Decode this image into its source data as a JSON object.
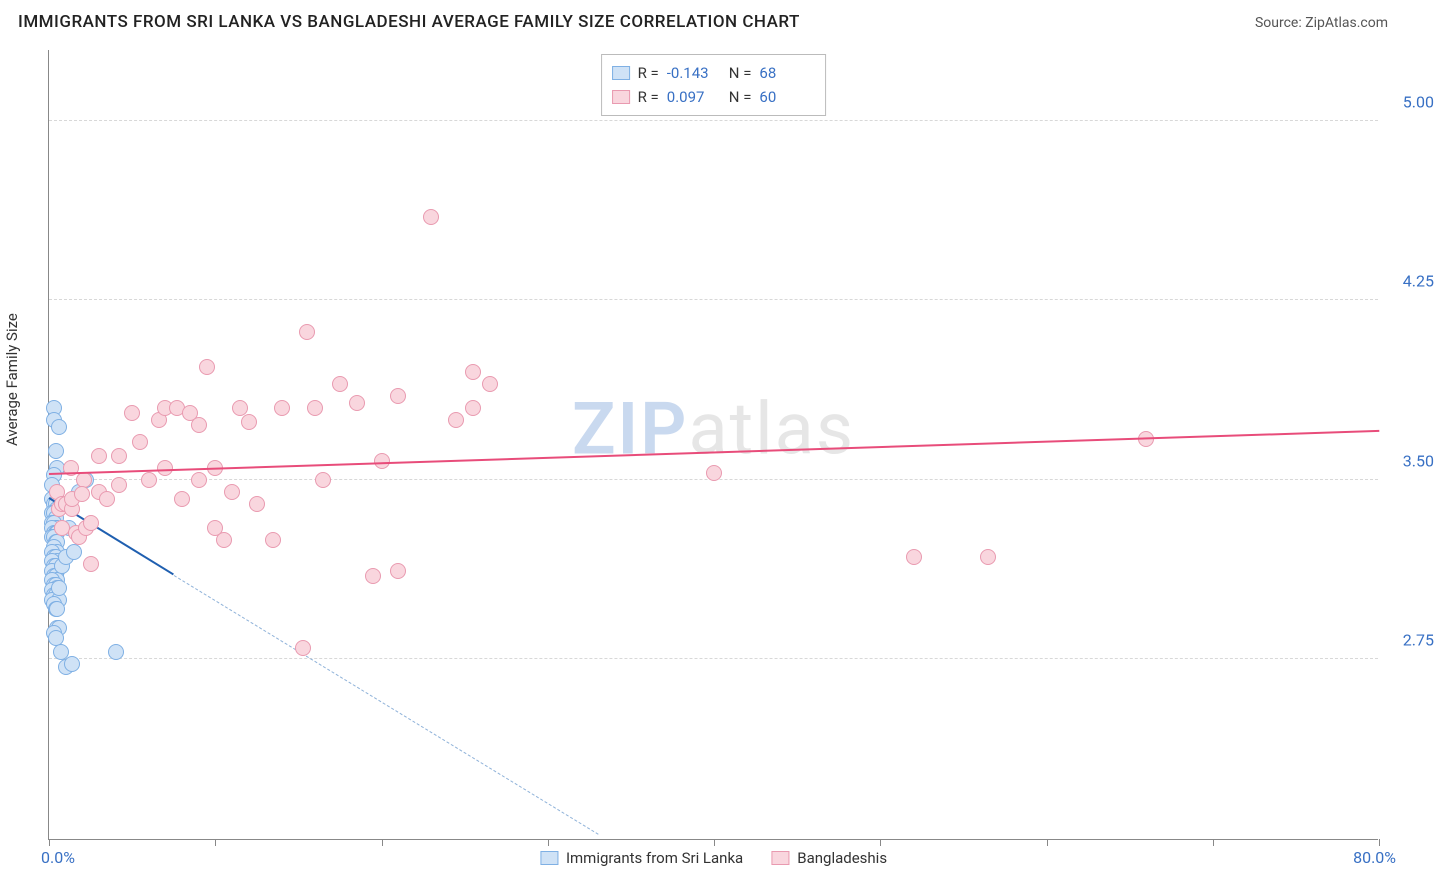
{
  "header": {
    "title": "IMMIGRANTS FROM SRI LANKA VS BANGLADESHI AVERAGE FAMILY SIZE CORRELATION CHART",
    "source_prefix": "Source: ",
    "source_name": "ZipAtlas.com"
  },
  "watermark": {
    "zip": "ZIP",
    "atlas": "atlas"
  },
  "chart": {
    "type": "scatter",
    "ylabel": "Average Family Size",
    "xlim": [
      0,
      80
    ],
    "ylim": [
      2.0,
      5.3
    ],
    "x_axis_min_label": "0.0%",
    "x_axis_max_label": "80.0%",
    "y_ticks": [
      2.75,
      3.5,
      4.25,
      5.0
    ],
    "y_tick_labels": [
      "2.75",
      "3.50",
      "4.25",
      "5.00"
    ],
    "x_tick_positions": [
      0,
      10,
      20,
      30,
      40,
      50,
      60,
      70,
      80
    ],
    "grid_color": "#d8d8d8",
    "background_color": "#ffffff",
    "axis_color": "#888888",
    "tick_label_color": "#3870c4",
    "marker_radius": 8,
    "series": [
      {
        "key": "sri_lanka",
        "label": "Immigrants from Sri Lanka",
        "fill": "#cfe2f6",
        "stroke": "#7fb0e4",
        "solid_line_color": "#1f5fb0",
        "dashed_line_color": "#8fb2d9",
        "R": "-0.143",
        "N": "68",
        "trend": {
          "x1": 0,
          "y1": 3.42,
          "x2": 7.5,
          "y2": 3.1,
          "width": 2.5
        },
        "trend_dashed": {
          "x1": 7.5,
          "y1": 3.1,
          "x2": 33,
          "y2": 2.02,
          "width": 1.5
        },
        "points": [
          [
            0.3,
            3.8
          ],
          [
            0.3,
            3.75
          ],
          [
            0.6,
            3.72
          ],
          [
            0.4,
            3.62
          ],
          [
            0.5,
            3.55
          ],
          [
            0.3,
            3.52
          ],
          [
            0.2,
            3.48
          ],
          [
            0.2,
            3.42
          ],
          [
            0.3,
            3.4
          ],
          [
            0.4,
            3.4
          ],
          [
            0.5,
            3.38
          ],
          [
            0.2,
            3.36
          ],
          [
            0.3,
            3.36
          ],
          [
            0.4,
            3.34
          ],
          [
            0.2,
            3.32
          ],
          [
            0.3,
            3.32
          ],
          [
            0.4,
            3.3
          ],
          [
            0.5,
            3.3
          ],
          [
            0.2,
            3.3
          ],
          [
            0.3,
            3.28
          ],
          [
            0.4,
            3.28
          ],
          [
            0.5,
            3.28
          ],
          [
            0.2,
            3.26
          ],
          [
            0.3,
            3.26
          ],
          [
            0.4,
            3.24
          ],
          [
            0.5,
            3.24
          ],
          [
            0.3,
            3.22
          ],
          [
            0.5,
            3.2
          ],
          [
            0.2,
            3.2
          ],
          [
            0.3,
            3.18
          ],
          [
            0.4,
            3.18
          ],
          [
            0.5,
            3.16
          ],
          [
            0.2,
            3.16
          ],
          [
            0.3,
            3.14
          ],
          [
            0.4,
            3.14
          ],
          [
            0.5,
            3.12
          ],
          [
            0.2,
            3.12
          ],
          [
            0.3,
            3.1
          ],
          [
            0.4,
            3.1
          ],
          [
            0.5,
            3.08
          ],
          [
            0.2,
            3.08
          ],
          [
            0.3,
            3.06
          ],
          [
            0.4,
            3.06
          ],
          [
            0.5,
            3.05
          ],
          [
            0.2,
            3.04
          ],
          [
            0.3,
            3.02
          ],
          [
            0.4,
            3.02
          ],
          [
            0.5,
            3.0
          ],
          [
            0.2,
            3.0
          ],
          [
            0.6,
            3.0
          ],
          [
            0.3,
            2.98
          ],
          [
            0.4,
            2.96
          ],
          [
            0.5,
            2.96
          ],
          [
            0.6,
            3.05
          ],
          [
            0.8,
            3.14
          ],
          [
            1.0,
            3.18
          ],
          [
            1.2,
            3.3
          ],
          [
            1.5,
            3.2
          ],
          [
            1.8,
            3.45
          ],
          [
            2.2,
            3.5
          ],
          [
            0.5,
            2.88
          ],
          [
            0.6,
            2.88
          ],
          [
            0.3,
            2.86
          ],
          [
            0.4,
            2.84
          ],
          [
            0.7,
            2.78
          ],
          [
            4.0,
            2.78
          ],
          [
            1.0,
            2.72
          ],
          [
            1.4,
            2.73
          ]
        ]
      },
      {
        "key": "bangladeshis",
        "label": "Bangladeshis",
        "fill": "#f9d6de",
        "stroke": "#e99ab0",
        "solid_line_color": "#e84c7a",
        "R": "0.097",
        "N": "60",
        "trend": {
          "x1": 0,
          "y1": 3.52,
          "x2": 80,
          "y2": 3.7,
          "width": 2.5
        },
        "points": [
          [
            0.5,
            3.45
          ],
          [
            0.6,
            3.38
          ],
          [
            0.8,
            3.3
          ],
          [
            0.8,
            3.4
          ],
          [
            1.0,
            3.4
          ],
          [
            1.4,
            3.38
          ],
          [
            1.4,
            3.42
          ],
          [
            1.3,
            3.55
          ],
          [
            1.6,
            3.28
          ],
          [
            1.8,
            3.26
          ],
          [
            2.1,
            3.5
          ],
          [
            2.0,
            3.44
          ],
          [
            2.2,
            3.3
          ],
          [
            2.5,
            3.32
          ],
          [
            3.0,
            3.45
          ],
          [
            3.0,
            3.6
          ],
          [
            3.5,
            3.42
          ],
          [
            4.2,
            3.6
          ],
          [
            4.2,
            3.48
          ],
          [
            5.0,
            3.78
          ],
          [
            5.5,
            3.66
          ],
          [
            6.6,
            3.75
          ],
          [
            6.0,
            3.5
          ],
          [
            7.0,
            3.8
          ],
          [
            7.0,
            3.55
          ],
          [
            7.7,
            3.8
          ],
          [
            8.0,
            3.42
          ],
          [
            8.5,
            3.78
          ],
          [
            9.0,
            3.73
          ],
          [
            9.0,
            3.5
          ],
          [
            9.5,
            3.97
          ],
          [
            10.5,
            3.25
          ],
          [
            10.0,
            3.55
          ],
          [
            10.0,
            3.3
          ],
          [
            11.5,
            3.8
          ],
          [
            11.0,
            3.45
          ],
          [
            12.0,
            3.74
          ],
          [
            12.5,
            3.4
          ],
          [
            13.5,
            3.25
          ],
          [
            14.0,
            3.8
          ],
          [
            15.5,
            4.12
          ],
          [
            16.0,
            3.8
          ],
          [
            15.3,
            2.8
          ],
          [
            16.5,
            3.5
          ],
          [
            17.5,
            3.9
          ],
          [
            18.5,
            3.82
          ],
          [
            19.5,
            3.1
          ],
          [
            20.0,
            3.58
          ],
          [
            21.0,
            3.12
          ],
          [
            21.0,
            3.85
          ],
          [
            23.0,
            4.6
          ],
          [
            24.5,
            3.75
          ],
          [
            25.5,
            3.95
          ],
          [
            25.5,
            3.8
          ],
          [
            26.5,
            3.9
          ],
          [
            40.0,
            3.53
          ],
          [
            52.0,
            3.18
          ],
          [
            56.5,
            3.18
          ],
          [
            66.0,
            3.67
          ],
          [
            2.5,
            3.15
          ]
        ]
      }
    ],
    "legend_top": {
      "r_label": "R =",
      "n_label": "N ="
    }
  }
}
